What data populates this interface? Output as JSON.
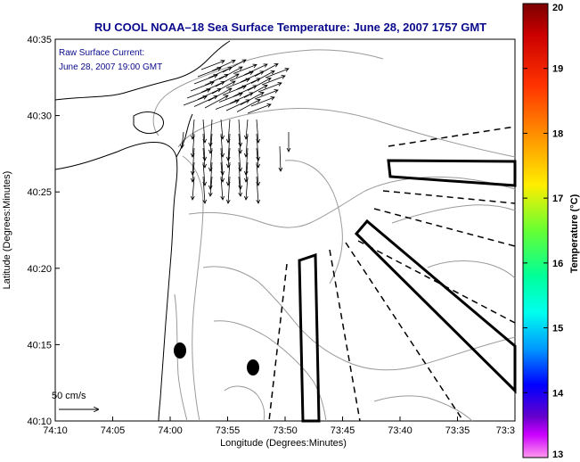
{
  "title": "RU COOL  NOAA–18  Sea Surface Temperature:  June 28, 2007 1757 GMT",
  "legend": {
    "line1": "Raw Surface Current:",
    "line2": "June 28, 2007 19:00 GMT",
    "scale_label": "50 cm/s"
  },
  "axes": {
    "xlabel": "Longitude (Degrees:Minutes)",
    "ylabel": "Latitude (Degrees:Minutes)",
    "xticks": [
      "74:10",
      "74:05",
      "74:00",
      "73:55",
      "73:50",
      "73:45",
      "73:40",
      "73:35",
      "73:3"
    ],
    "yticks": [
      "40:35",
      "40:30",
      "40:25",
      "40:20",
      "40:15",
      "40:10"
    ]
  },
  "colorbar": {
    "label": "Temperature (°C)",
    "ticks": [
      "20",
      "19",
      "18",
      "17",
      "16",
      "15",
      "14",
      "13"
    ],
    "min": 13,
    "max": 20
  },
  "colors": {
    "title": "#0a0a8c",
    "frame": "#000000",
    "contour": "#9a9a9a"
  }
}
